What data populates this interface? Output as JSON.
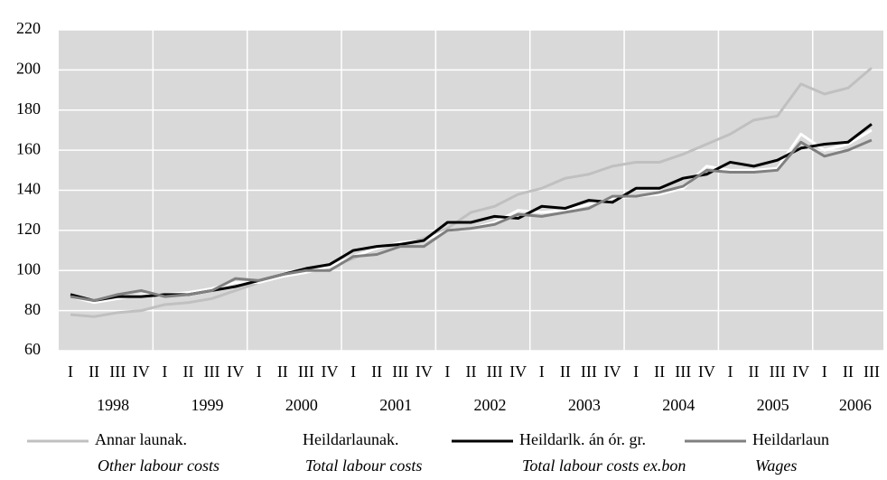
{
  "chart_data": {
    "type": "line",
    "categories": [
      "I",
      "II",
      "III",
      "IV",
      "I",
      "II",
      "III",
      "IV",
      "I",
      "II",
      "III",
      "IV",
      "I",
      "II",
      "III",
      "IV",
      "I",
      "II",
      "III",
      "IV",
      "I",
      "II",
      "III",
      "IV",
      "I",
      "II",
      "III",
      "IV",
      "I",
      "II",
      "III",
      "IV",
      "I",
      "II",
      "III"
    ],
    "years": [
      "1998",
      "1999",
      "2000",
      "2001",
      "2002",
      "2003",
      "2004",
      "2005",
      "2006"
    ],
    "ylim": [
      60,
      220
    ],
    "yticks": [
      60,
      80,
      100,
      120,
      140,
      160,
      180,
      200,
      220
    ],
    "grid": true,
    "legend": "bottom",
    "series": [
      {
        "name": "Annar launak.",
        "subtitle": "Other labour costs",
        "color": "#c0c0c0",
        "values": [
          78,
          77,
          79,
          80,
          83,
          84,
          86,
          90,
          94,
          97,
          99,
          102,
          106,
          111,
          113,
          116,
          121,
          129,
          132,
          138,
          141,
          146,
          148,
          152,
          154,
          154,
          158,
          163,
          168,
          175,
          177,
          193,
          188,
          191,
          201
        ]
      },
      {
        "name": "Heildarlaunak.",
        "subtitle": "Total labour costs",
        "color": "#ffffff",
        "values": [
          87,
          84,
          86,
          88,
          88,
          89,
          91,
          94,
          94,
          97,
          99,
          102,
          107,
          111,
          114,
          115,
          120,
          121,
          124,
          130,
          129,
          130,
          133,
          136,
          137,
          138,
          141,
          152,
          150,
          150,
          151,
          168,
          160,
          163,
          170
        ]
      },
      {
        "name": "Heildarlk. án ór. gr.",
        "subtitle": "Total labour costs ex.bon",
        "color": "#000000",
        "values": [
          88,
          85,
          87,
          87,
          88,
          88,
          90,
          92,
          95,
          98,
          101,
          103,
          110,
          112,
          113,
          115,
          124,
          124,
          127,
          126,
          132,
          131,
          135,
          134,
          141,
          141,
          146,
          148,
          154,
          152,
          155,
          161,
          163,
          164,
          173
        ]
      },
      {
        "name": "Heildarlaun",
        "subtitle": "Wages",
        "color": "#808080",
        "values": [
          87,
          85,
          88,
          90,
          87,
          88,
          90,
          96,
          95,
          98,
          100,
          100,
          107,
          108,
          112,
          112,
          120,
          121,
          123,
          128,
          127,
          129,
          131,
          137,
          137,
          139,
          142,
          150,
          149,
          149,
          150,
          164,
          157,
          160,
          165
        ]
      }
    ]
  }
}
